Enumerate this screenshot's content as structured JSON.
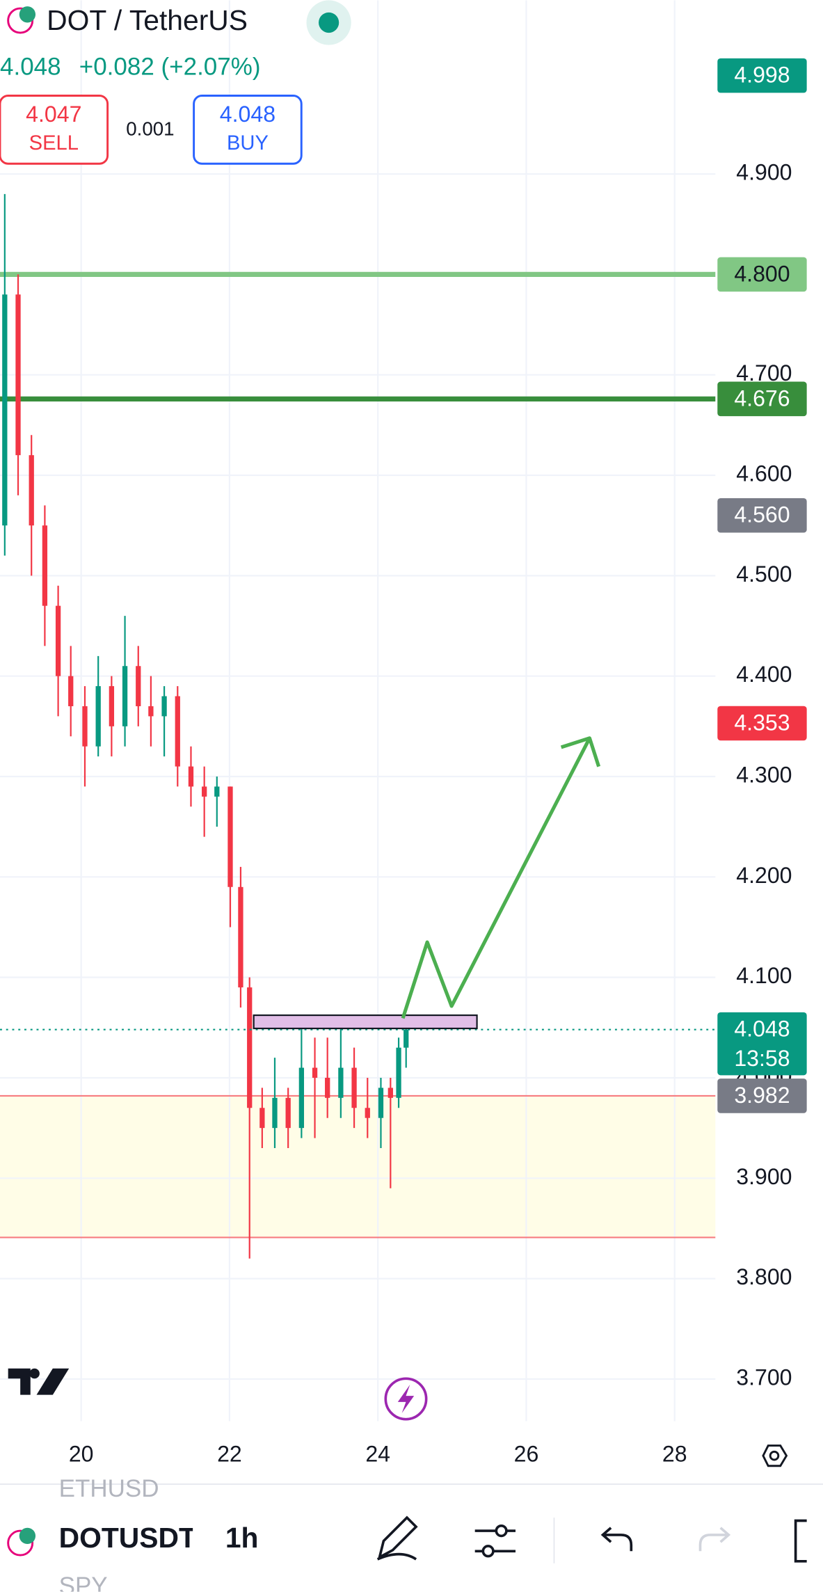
{
  "header": {
    "symbol": "DOT / TetherUS",
    "last": "4.048",
    "change": "+0.082 (+2.07%)"
  },
  "trade": {
    "sell_price": "4.047",
    "sell_label": "SELL",
    "spread": "0.001",
    "buy_price": "4.048",
    "buy_label": "BUY"
  },
  "chart_data": {
    "type": "candlestick",
    "x": [
      18.97,
      19.15,
      19.33,
      19.51,
      19.69,
      19.86,
      20.05,
      20.23,
      20.41,
      20.59,
      20.77,
      20.94,
      21.12,
      21.3,
      21.48,
      21.66,
      21.83,
      22.01,
      22.15,
      22.27,
      22.44,
      22.61,
      22.79,
      22.97,
      23.15,
      23.32,
      23.5,
      23.68,
      23.86,
      24.04,
      24.17,
      24.28,
      24.38
    ],
    "open": [
      4.55,
      4.78,
      4.62,
      4.55,
      4.47,
      4.4,
      4.37,
      4.33,
      4.39,
      4.35,
      4.41,
      4.37,
      4.36,
      4.38,
      4.31,
      4.29,
      4.28,
      4.29,
      4.19,
      4.09,
      3.97,
      3.95,
      3.98,
      3.95,
      4.01,
      4.0,
      3.98,
      4.01,
      3.97,
      3.96,
      3.99,
      3.98,
      4.03
    ],
    "high": [
      4.88,
      4.8,
      4.64,
      4.57,
      4.49,
      4.43,
      4.39,
      4.42,
      4.4,
      4.46,
      4.43,
      4.4,
      4.39,
      4.39,
      4.33,
      4.31,
      4.3,
      4.29,
      4.21,
      4.1,
      3.99,
      4.02,
      3.99,
      4.06,
      4.04,
      4.04,
      4.05,
      4.03,
      4.0,
      4.0,
      4.0,
      4.04,
      4.06
    ],
    "low": [
      4.52,
      4.58,
      4.5,
      4.43,
      4.36,
      4.34,
      4.29,
      4.32,
      4.32,
      4.33,
      4.35,
      4.33,
      4.32,
      4.29,
      4.27,
      4.24,
      4.25,
      4.15,
      4.07,
      3.82,
      3.93,
      3.93,
      3.93,
      3.94,
      3.94,
      3.96,
      3.96,
      3.95,
      3.94,
      3.93,
      3.89,
      3.97,
      4.01
    ],
    "close": [
      4.78,
      4.62,
      4.55,
      4.47,
      4.4,
      4.37,
      4.33,
      4.39,
      4.35,
      4.41,
      4.37,
      4.36,
      4.38,
      4.31,
      4.29,
      4.28,
      4.29,
      4.19,
      4.09,
      3.97,
      3.95,
      3.98,
      3.95,
      4.01,
      4.0,
      3.98,
      4.01,
      3.97,
      3.96,
      3.99,
      3.98,
      4.03,
      4.048
    ],
    "up_color": "#089981",
    "down_color": "#f23645",
    "xlim": [
      18.906,
      28.55
    ],
    "xticks": [
      20,
      22,
      24,
      26,
      28
    ],
    "ylim": [
      3.658,
      5.073
    ],
    "yticks": [
      {
        "value": 3.7,
        "label": "3.700"
      },
      {
        "value": 3.8,
        "label": "3.800"
      },
      {
        "value": 3.9,
        "label": "3.900"
      },
      {
        "value": 4.0,
        "label": "4.000"
      },
      {
        "value": 4.1,
        "label": "4.100"
      },
      {
        "value": 4.2,
        "label": "4.200"
      },
      {
        "value": 4.3,
        "label": "4.300"
      },
      {
        "value": 4.4,
        "label": "4.400"
      },
      {
        "value": 4.5,
        "label": "4.500"
      },
      {
        "value": 4.6,
        "label": "4.600"
      },
      {
        "value": 4.7,
        "label": "4.700"
      },
      {
        "value": 4.9,
        "label": "4.900"
      }
    ],
    "grid": true,
    "lines": [
      {
        "value": 4.8,
        "color": "#81c784"
      },
      {
        "value": 4.676,
        "color": "#388e3c"
      }
    ],
    "zone": {
      "from": 3.841,
      "to": 3.982,
      "fill": "#fffde7",
      "edge": "#f77c80"
    },
    "price_labels": [
      {
        "value": 4.998,
        "label": "4.998",
        "color": "#089981",
        "text_color": "#ffffff"
      },
      {
        "value": 4.8,
        "label": "4.800",
        "color": "#81c784",
        "text_color": "#131722"
      },
      {
        "value": 4.676,
        "label": "4.676",
        "color": "#388e3c",
        "text_color": "#ffffff"
      },
      {
        "value": 4.56,
        "label": "4.560",
        "color": "#787b86",
        "text_color": "#ffffff"
      },
      {
        "value": 4.353,
        "label": "4.353",
        "color": "#f23645",
        "text_color": "#ffffff"
      },
      {
        "value": 3.982,
        "label": "3.982",
        "color": "#787b86",
        "text_color": "#ffffff"
      }
    ],
    "current": {
      "value": 4.048,
      "label": "4.048",
      "countdown": "13:58",
      "color": "#089981"
    }
  },
  "toolbar": {
    "symbols": [
      "ETHUSD",
      "DOTUSDT",
      "SPY"
    ],
    "interval": "1h"
  }
}
